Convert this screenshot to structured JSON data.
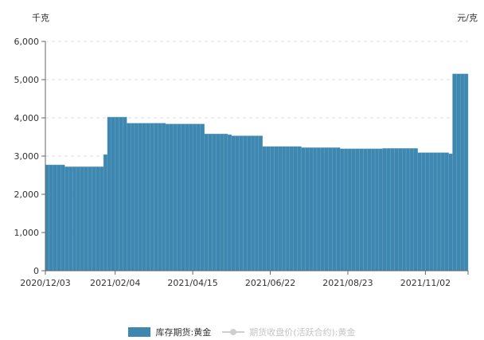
{
  "chart_data": {
    "type": "bar",
    "y_unit_left": "千克",
    "y_unit_right": "元/克",
    "ylim": [
      0,
      6000
    ],
    "y_ticks": [
      "0",
      "1,000",
      "2,000",
      "3,000",
      "4,000",
      "5,000",
      "6,000"
    ],
    "y_tick_values": [
      0,
      1000,
      2000,
      3000,
      4000,
      5000,
      6000
    ],
    "x_ticks": [
      "2020/12/03",
      "2021/02/04",
      "2021/04/15",
      "2021/06/22",
      "2021/08/23",
      "2021/11/02"
    ],
    "x_tick_index": [
      0,
      18,
      38,
      58,
      78,
      98
    ],
    "grid": true,
    "legend_position": "bottom",
    "series": [
      {
        "name": "库存期货:黄金",
        "color": "#3d87b0",
        "visible": true,
        "values": [
          2770,
          2770,
          2770,
          2770,
          2770,
          2720,
          2720,
          2720,
          2720,
          2720,
          2720,
          2720,
          2720,
          2720,
          2720,
          3040,
          4020,
          4020,
          4020,
          4020,
          4020,
          3860,
          3860,
          3860,
          3860,
          3860,
          3860,
          3860,
          3860,
          3860,
          3860,
          3840,
          3840,
          3840,
          3840,
          3840,
          3840,
          3840,
          3840,
          3840,
          3840,
          3580,
          3580,
          3580,
          3580,
          3580,
          3580,
          3560,
          3530,
          3530,
          3530,
          3530,
          3530,
          3530,
          3530,
          3530,
          3250,
          3250,
          3250,
          3250,
          3250,
          3250,
          3250,
          3250,
          3250,
          3250,
          3220,
          3220,
          3220,
          3220,
          3220,
          3220,
          3220,
          3220,
          3220,
          3220,
          3190,
          3190,
          3190,
          3190,
          3190,
          3190,
          3190,
          3190,
          3190,
          3190,
          3190,
          3200,
          3200,
          3200,
          3200,
          3200,
          3200,
          3200,
          3200,
          3200,
          3090,
          3090,
          3090,
          3090,
          3090,
          3090,
          3090,
          3090,
          3060,
          5150,
          5150,
          5150,
          5150
        ]
      },
      {
        "name": "期货收盘价(活跃合约):黄金",
        "color": "#cfcfcf",
        "visible": false
      }
    ]
  },
  "legend": {
    "item1": "库存期货:黄金",
    "item2": "期货收盘价(活跃合约):黄金"
  }
}
